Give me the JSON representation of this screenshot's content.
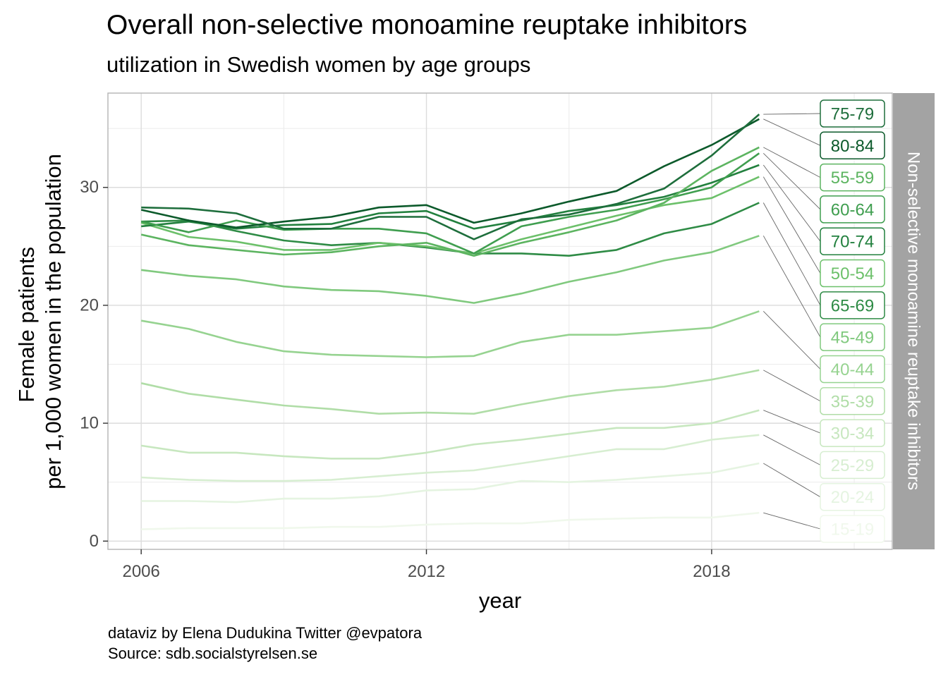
{
  "title": "Overall non-selective monoamine reuptake inhibitors",
  "subtitle": "utilization in Swedish women by age groups",
  "caption": {
    "line1": "dataviz by Elena Dudukina Twitter @evpatora",
    "line2": "Source: sdb.socialstyrelsen.se"
  },
  "chart_data": {
    "type": "line",
    "xlabel": "year",
    "ylabel_lines": [
      "Female patients",
      "per 1,000 women in the population"
    ],
    "facet_label": "Non-selective monoamine reuptake inhibitors",
    "x_ticks": [
      2006,
      2012,
      2018
    ],
    "y_ticks": [
      0,
      10,
      20,
      30
    ],
    "xlim": [
      2005.3,
      2021.8
    ],
    "ylim": [
      -0.7,
      38
    ],
    "grid": true,
    "x": [
      2006,
      2007,
      2008,
      2009,
      2010,
      2011,
      2012,
      2013,
      2014,
      2015,
      2016,
      2017,
      2018,
      2019
    ],
    "series": [
      {
        "name": "75-79",
        "color": "#1e6e3c",
        "values": [
          28.3,
          28.2,
          27.8,
          26.5,
          26.5,
          27.5,
          27.5,
          25.6,
          27.3,
          27.7,
          28.6,
          29.9,
          32.7,
          36.2
        ]
      },
      {
        "name": "80-84",
        "color": "#0c5a2b",
        "values": [
          28.1,
          27.2,
          26.6,
          27.1,
          27.5,
          28.3,
          28.5,
          27.0,
          27.8,
          28.8,
          29.7,
          31.8,
          33.6,
          35.8
        ]
      },
      {
        "name": "55-59",
        "color": "#5cb460",
        "values": [
          26.0,
          25.1,
          24.7,
          24.3,
          24.5,
          25.0,
          25.3,
          24.2,
          25.3,
          26.2,
          27.2,
          28.7,
          31.4,
          33.4
        ]
      },
      {
        "name": "60-64",
        "color": "#3f9e4f",
        "values": [
          27.1,
          26.2,
          27.2,
          26.4,
          26.5,
          26.5,
          26.1,
          24.4,
          26.7,
          27.5,
          28.1,
          29.0,
          30.0,
          32.9
        ]
      },
      {
        "name": "70-74",
        "color": "#22803e",
        "values": [
          26.7,
          27.1,
          26.5,
          26.8,
          26.9,
          27.8,
          28.0,
          26.5,
          27.2,
          28.0,
          28.5,
          29.2,
          30.4,
          31.9
        ]
      },
      {
        "name": "50-54",
        "color": "#6cc06a",
        "values": [
          27.0,
          25.8,
          25.4,
          24.7,
          24.7,
          25.3,
          25.0,
          24.4,
          25.6,
          26.6,
          27.6,
          28.5,
          29.1,
          30.9
        ]
      },
      {
        "name": "65-69",
        "color": "#2e8b45",
        "values": [
          27.1,
          27.2,
          26.3,
          25.5,
          25.1,
          25.3,
          24.9,
          24.4,
          24.4,
          24.2,
          24.7,
          26.1,
          26.9,
          28.7
        ]
      },
      {
        "name": "45-49",
        "color": "#80c97e",
        "values": [
          23.0,
          22.5,
          22.2,
          21.6,
          21.3,
          21.2,
          20.8,
          20.2,
          21.0,
          22.0,
          22.8,
          23.8,
          24.5,
          25.9
        ]
      },
      {
        "name": "40-44",
        "color": "#96d390",
        "values": [
          18.7,
          18.0,
          16.9,
          16.1,
          15.8,
          15.7,
          15.6,
          15.7,
          16.9,
          17.5,
          17.5,
          17.8,
          18.1,
          19.5
        ]
      },
      {
        "name": "35-39",
        "color": "#b0dda7",
        "values": [
          13.4,
          12.5,
          12.0,
          11.5,
          11.2,
          10.8,
          10.9,
          10.8,
          11.6,
          12.3,
          12.8,
          13.1,
          13.7,
          14.5
        ]
      },
      {
        "name": "30-34",
        "color": "#c7e7bf",
        "values": [
          8.1,
          7.5,
          7.5,
          7.2,
          7.0,
          7.0,
          7.5,
          8.2,
          8.6,
          9.1,
          9.6,
          9.6,
          10.0,
          11.1
        ]
      },
      {
        "name": "25-29",
        "color": "#d7eed1",
        "values": [
          5.4,
          5.2,
          5.1,
          5.1,
          5.2,
          5.5,
          5.8,
          6.0,
          6.6,
          7.2,
          7.8,
          7.8,
          8.6,
          9.0
        ]
      },
      {
        "name": "20-24",
        "color": "#e5f4e1",
        "values": [
          3.4,
          3.4,
          3.3,
          3.6,
          3.6,
          3.8,
          4.3,
          4.4,
          5.1,
          5.0,
          5.2,
          5.5,
          5.8,
          6.6
        ]
      },
      {
        "name": "15-19",
        "color": "#f0f8ec",
        "values": [
          1.0,
          1.1,
          1.1,
          1.1,
          1.2,
          1.2,
          1.4,
          1.5,
          1.5,
          1.8,
          1.9,
          2.0,
          2.0,
          2.4
        ]
      }
    ]
  }
}
